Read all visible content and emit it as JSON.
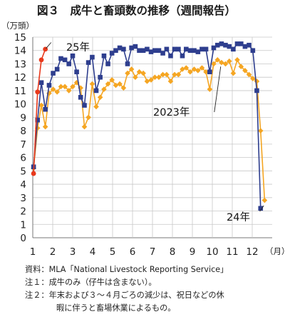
{
  "chart_data": {
    "type": "line",
    "title": "図３　成牛と畜頭数の推移（週間報告）",
    "ylabel": "（万頭）",
    "xunit": "（月）",
    "ylim": [
      0,
      15
    ],
    "xlim": [
      1,
      13
    ],
    "x_ticks": [
      "1",
      "2",
      "3",
      "4",
      "5",
      "6",
      "7",
      "8",
      "9",
      "10",
      "11",
      "12"
    ],
    "y_ticks": [
      "0",
      "1",
      "2",
      "3",
      "4",
      "5",
      "6",
      "7",
      "8",
      "9",
      "10",
      "11",
      "12",
      "13",
      "14",
      "15"
    ],
    "grid": true,
    "series": [
      {
        "name": "25年",
        "color": "#e8391c",
        "marker": "circle",
        "x": [
          1.04,
          1.24,
          1.43,
          1.63
        ],
        "y": [
          4.8,
          10.9,
          13.3,
          14.1
        ]
      },
      {
        "name": "2023年",
        "color": "#2e3e8e",
        "marker": "square",
        "x": [
          1.04,
          1.24,
          1.43,
          1.63,
          1.82,
          2.02,
          2.22,
          2.41,
          2.61,
          2.81,
          3.0,
          3.2,
          3.4,
          3.59,
          3.79,
          3.98,
          4.18,
          4.38,
          4.57,
          4.77,
          4.97,
          5.16,
          5.36,
          5.55,
          5.75,
          5.95,
          6.14,
          6.34,
          6.54,
          6.73,
          6.93,
          7.12,
          7.32,
          7.52,
          7.71,
          7.91,
          8.11,
          8.3,
          8.5,
          8.69,
          8.89,
          9.09,
          9.28,
          9.48,
          9.68,
          9.87,
          10.07,
          10.26,
          10.46,
          10.66,
          10.85,
          11.05,
          11.25,
          11.44,
          11.64,
          11.84,
          12.03,
          12.23,
          12.42,
          12.62
        ],
        "y": [
          5.3,
          8.8,
          11.6,
          9.6,
          11.4,
          12.3,
          12.6,
          13.4,
          13.3,
          13.0,
          13.6,
          12.4,
          10.5,
          9.9,
          13.1,
          13.5,
          11.0,
          12.0,
          13.6,
          13.0,
          13.8,
          14.0,
          14.2,
          14.1,
          13.0,
          14.2,
          14.3,
          14.0,
          14.0,
          14.1,
          13.9,
          14.0,
          14.0,
          13.8,
          14.1,
          13.6,
          14.1,
          14.1,
          13.6,
          14.1,
          14.0,
          14.0,
          13.9,
          14.1,
          14.1,
          12.4,
          14.2,
          14.4,
          14.5,
          14.4,
          14.3,
          14.1,
          14.5,
          14.5,
          14.3,
          14.4,
          14.0,
          11.0,
          2.2,
          null
        ]
      },
      {
        "name": "24年",
        "color": "#f5a623",
        "marker": "diamond",
        "x": [
          1.04,
          1.24,
          1.43,
          1.63,
          1.82,
          2.02,
          2.22,
          2.41,
          2.61,
          2.81,
          3.0,
          3.2,
          3.4,
          3.59,
          3.79,
          3.98,
          4.18,
          4.38,
          4.57,
          4.77,
          4.97,
          5.16,
          5.36,
          5.55,
          5.75,
          5.95,
          6.14,
          6.34,
          6.54,
          6.73,
          6.93,
          7.12,
          7.32,
          7.52,
          7.71,
          7.91,
          8.11,
          8.3,
          8.5,
          8.69,
          8.89,
          9.09,
          9.28,
          9.48,
          9.68,
          9.87,
          10.07,
          10.26,
          10.46,
          10.66,
          10.85,
          11.05,
          11.25,
          11.44,
          11.64,
          11.84,
          12.03,
          12.23,
          12.42,
          12.62
        ],
        "y": [
          5.2,
          8.2,
          9.9,
          8.3,
          10.8,
          11.1,
          10.9,
          11.3,
          11.3,
          11.0,
          11.3,
          11.6,
          11.2,
          8.3,
          9.0,
          11.5,
          9.8,
          10.5,
          11.1,
          11.5,
          11.8,
          11.4,
          11.5,
          11.2,
          12.3,
          12.6,
          12.0,
          12.4,
          12.3,
          11.7,
          11.8,
          12.0,
          12.0,
          12.2,
          12.2,
          11.7,
          12.2,
          12.2,
          12.6,
          12.7,
          12.4,
          12.6,
          12.5,
          12.7,
          12.4,
          11.1,
          13.0,
          13.3,
          13.1,
          13.0,
          13.2,
          12.3,
          13.3,
          12.8,
          12.5,
          12.2,
          11.9,
          11.7,
          8.0,
          2.8
        ]
      }
    ],
    "annotations": [
      "25年",
      "2023年",
      "24年"
    ]
  },
  "notes": [
    {
      "key": "資料：",
      "text": "MLA「National Livestock Reporting Service」"
    },
    {
      "key": "注１：",
      "text": "成牛のみ（仔牛は含まない）。"
    },
    {
      "key": "注２：",
      "text": "年末および３～４月ごろの減少は、祝日などの休"
    },
    {
      "key": "",
      "text": "暇に伴うと畜場休業によるもの。"
    }
  ]
}
